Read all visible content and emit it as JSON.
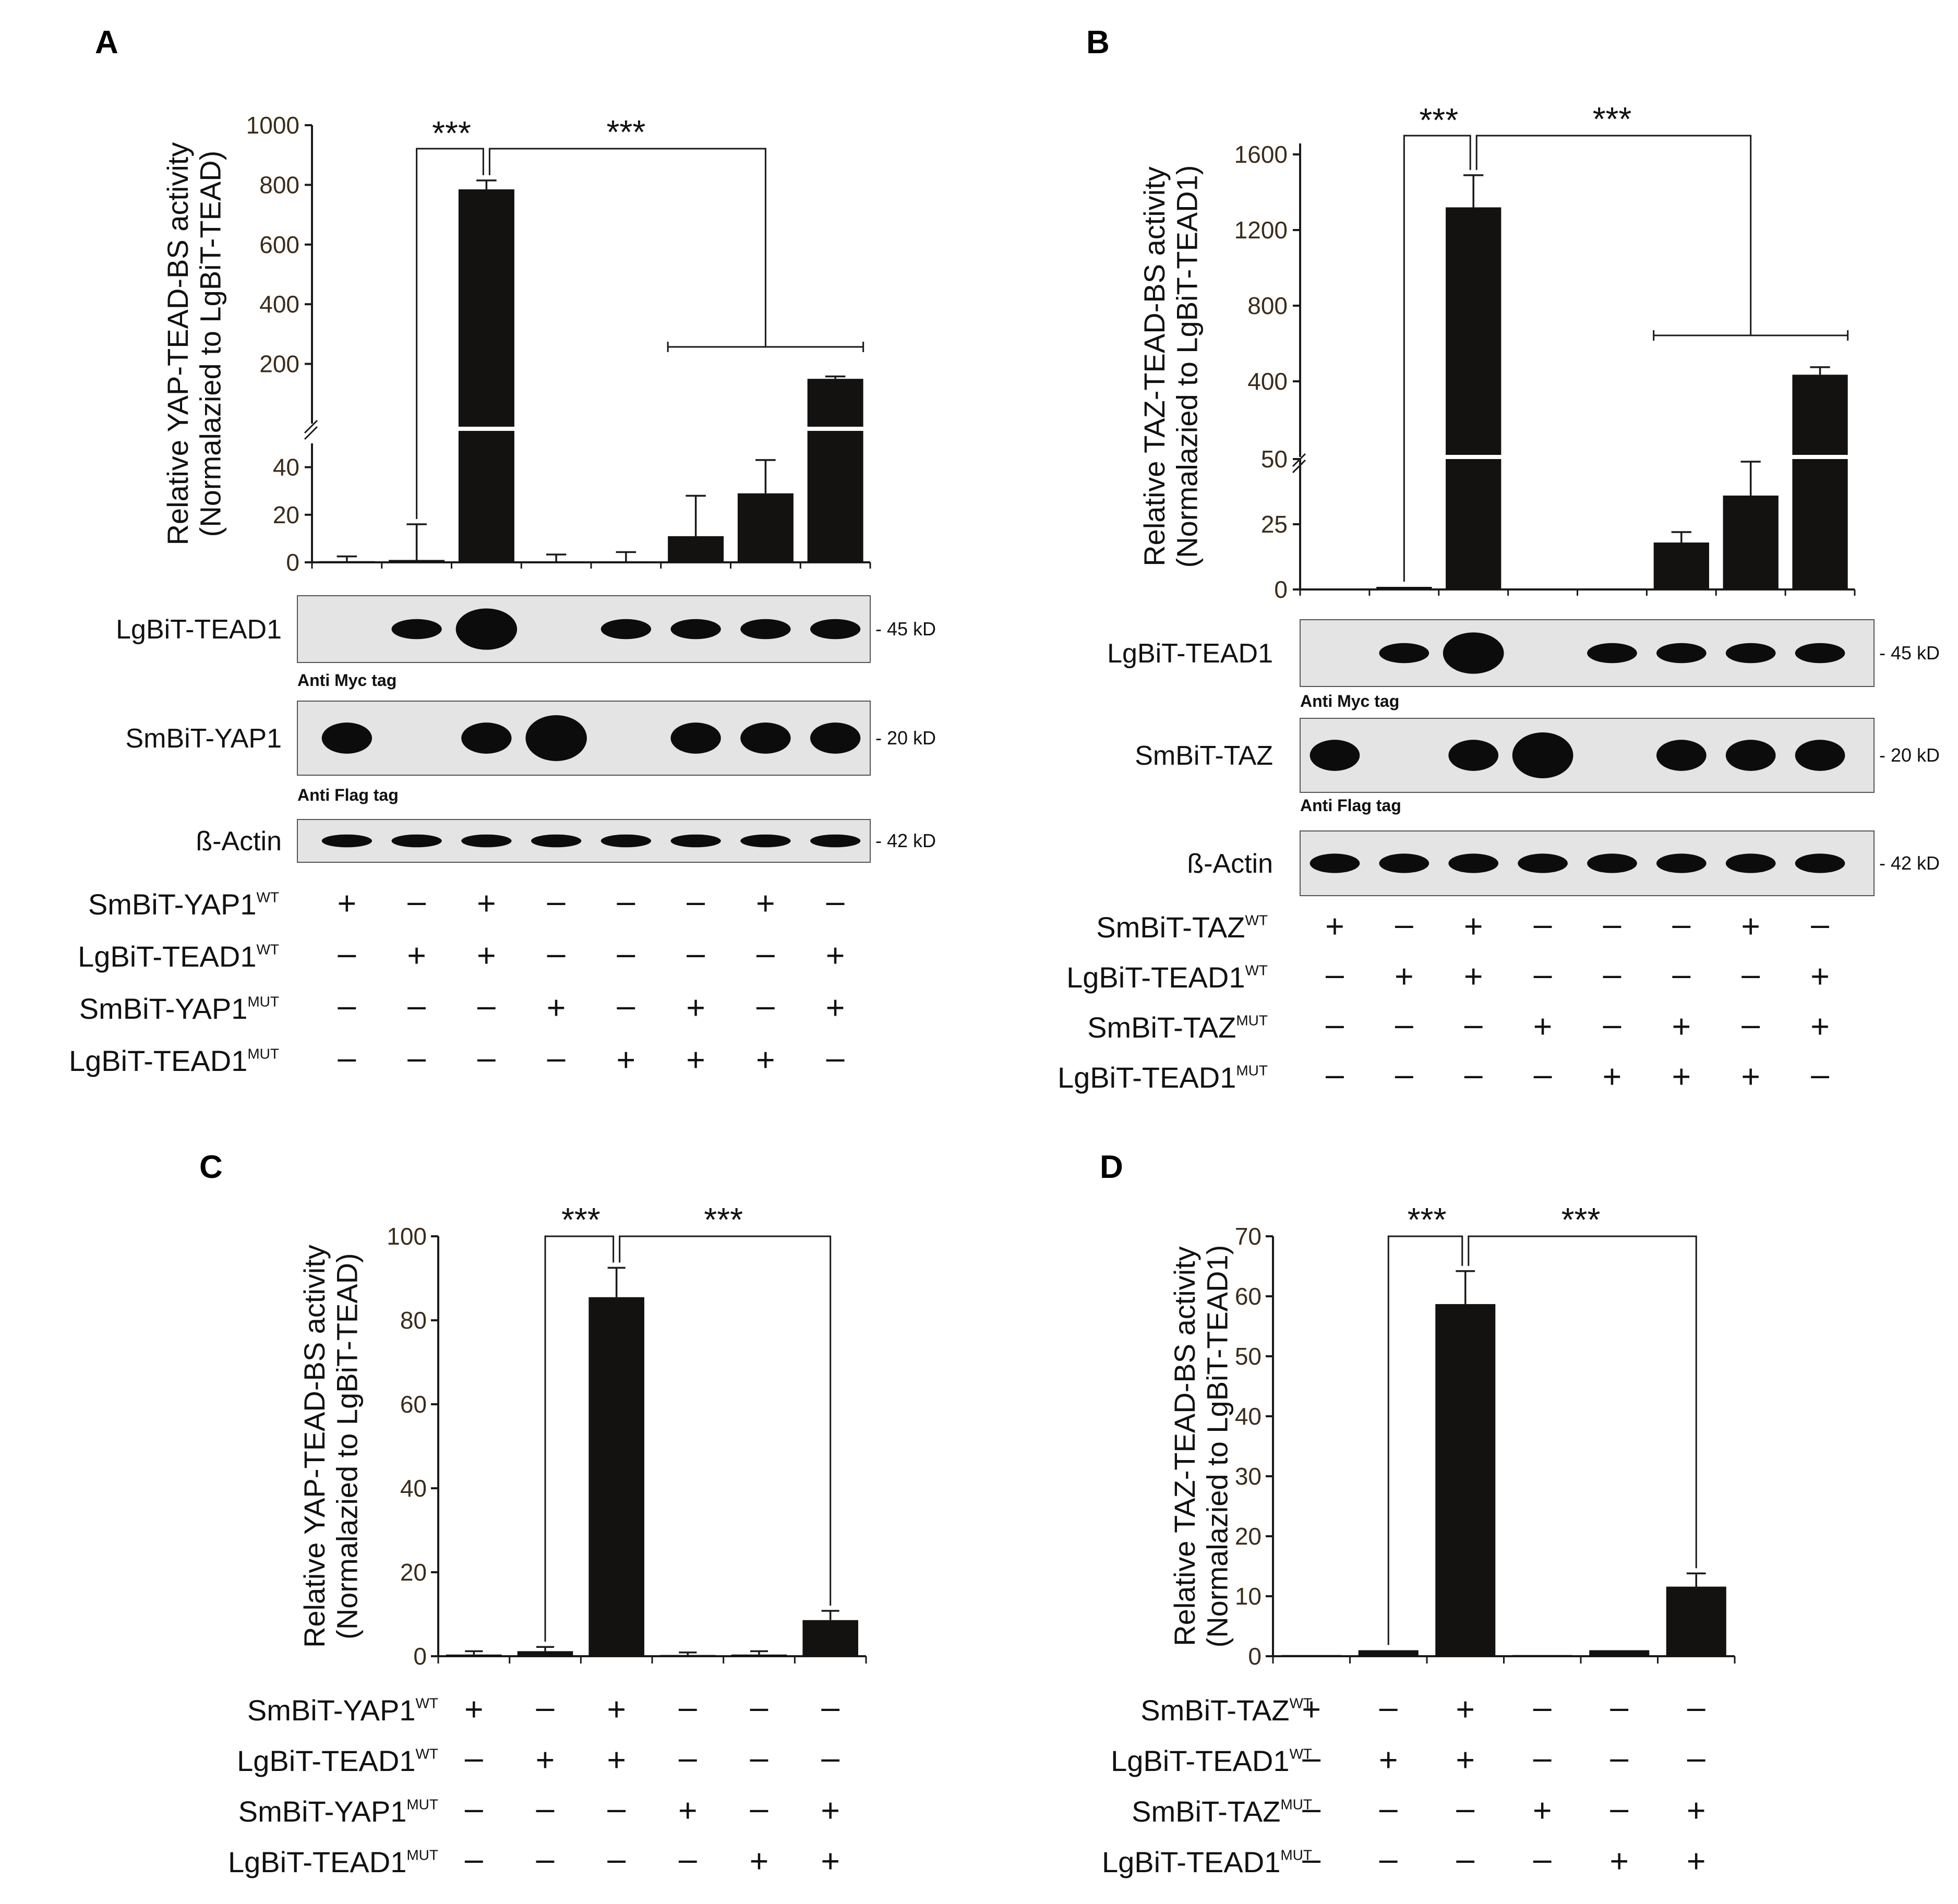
{
  "colors": {
    "bar": "#141210",
    "axis": "#1a1a1a",
    "tick_text": "#3b2b1a",
    "blot_bg": "#e4e4e4",
    "band": "#0c0c0c"
  },
  "chart_data": [
    {
      "panel": "A",
      "type": "bar",
      "ylabel": [
        "Relative YAP-TEAD-BS activity",
        "(Normalazied to LgBiT-TEAD)"
      ],
      "axis_break": true,
      "upper_ticks": [
        "1000",
        "800",
        "600",
        "400",
        "200"
      ],
      "lower_ticks": [
        "40",
        "20",
        "0"
      ],
      "upper_ylim": [
        0,
        1000
      ],
      "lower_ylim": [
        0,
        50
      ],
      "values": [
        0.5,
        1,
        785,
        0.3,
        0.3,
        11,
        29,
        150
      ],
      "errors": [
        2,
        15,
        30,
        3,
        4,
        17,
        14,
        8
      ],
      "significance": [
        {
          "label": "***",
          "from": 1,
          "to": 2
        },
        {
          "label": "***",
          "from": 2,
          "to": [
            5,
            7
          ]
        }
      ],
      "blots": [
        {
          "name": "LgBiT-TEAD1",
          "note": "Anti Myc tag",
          "size": "45 kD",
          "bands": [
            0,
            1,
            2,
            0,
            1,
            1,
            1,
            1
          ]
        },
        {
          "name": "SmBiT-YAP1",
          "note": "Anti Flag tag",
          "size": "20 kD",
          "bands": [
            1,
            0,
            1,
            2,
            0,
            1,
            1,
            1
          ]
        },
        {
          "name": "ß-Actin",
          "note": "",
          "size": "42 kD",
          "bands": [
            1,
            1,
            1,
            1,
            1,
            1,
            1,
            1
          ]
        }
      ],
      "conditions": [
        {
          "label": "SmBiT-YAP1",
          "sup": "WT",
          "signs": [
            "+",
            "–",
            "+",
            "–",
            "–",
            "–",
            "+",
            "–"
          ]
        },
        {
          "label": "LgBiT-TEAD1",
          "sup": "WT",
          "signs": [
            "–",
            "+",
            "+",
            "–",
            "–",
            "–",
            "–",
            "+"
          ]
        },
        {
          "label": "SmBiT-YAP1",
          "sup": "MUT",
          "signs": [
            "–",
            "–",
            "–",
            "+",
            "–",
            "+",
            "–",
            "+"
          ]
        },
        {
          "label": "LgBiT-TEAD1",
          "sup": "MUT",
          "signs": [
            "–",
            "–",
            "–",
            "–",
            "+",
            "+",
            "+",
            "–"
          ]
        }
      ]
    },
    {
      "panel": "B",
      "type": "bar",
      "ylabel": [
        "Relative TAZ-TEAD-BS activity",
        "(Normalazied to LgBiT-TEAD1)"
      ],
      "axis_break": true,
      "upper_ticks": [
        "1600",
        "1200",
        "800",
        "400"
      ],
      "lower_ticks": [
        "50",
        "25",
        "0"
      ],
      "upper_ylim": [
        0,
        1600
      ],
      "lower_ylim": [
        0,
        50
      ],
      "values": [
        0,
        1,
        1320,
        0,
        0.3,
        18,
        36,
        435
      ],
      "errors": [
        0,
        0,
        170,
        0,
        0,
        4,
        13,
        40
      ],
      "significance": [
        {
          "label": "***",
          "from": 1,
          "to": 2
        },
        {
          "label": "***",
          "from": 2,
          "to": [
            5,
            7
          ]
        }
      ],
      "blots": [
        {
          "name": "LgBiT-TEAD1",
          "note": "Anti Myc tag",
          "size": "45 kD",
          "bands": [
            0,
            1,
            2,
            0,
            1,
            1,
            1,
            1
          ]
        },
        {
          "name": "SmBiT-TAZ",
          "note": "Anti Flag tag",
          "size": "20 kD",
          "bands": [
            1,
            0,
            1,
            2,
            0,
            1,
            1,
            1
          ]
        },
        {
          "name": "ß-Actin",
          "note": "",
          "size": "42 kD",
          "bands": [
            1,
            1,
            1,
            1,
            1,
            1,
            1,
            1
          ]
        }
      ],
      "conditions": [
        {
          "label": "SmBiT-TAZ",
          "sup": "WT",
          "signs": [
            "+",
            "–",
            "+",
            "–",
            "–",
            "–",
            "+",
            "–"
          ]
        },
        {
          "label": "LgBiT-TEAD1",
          "sup": "WT",
          "signs": [
            "–",
            "+",
            "+",
            "–",
            "–",
            "–",
            "–",
            "+"
          ]
        },
        {
          "label": "SmBiT-TAZ",
          "sup": "MUT",
          "signs": [
            "–",
            "–",
            "–",
            "+",
            "–",
            "+",
            "–",
            "+"
          ]
        },
        {
          "label": "LgBiT-TEAD1",
          "sup": "MUT",
          "signs": [
            "–",
            "–",
            "–",
            "–",
            "+",
            "+",
            "+",
            "–"
          ]
        }
      ]
    },
    {
      "panel": "C",
      "type": "bar",
      "ylabel": [
        "Relative YAP-TEAD-BS activity",
        "(Normalazied to LgBiT-TEAD)"
      ],
      "ylim": [
        0,
        100
      ],
      "ticks": [
        "100",
        "80",
        "60",
        "40",
        "20",
        "0"
      ],
      "values": [
        0.4,
        1.2,
        85.5,
        0.3,
        0.4,
        8.6
      ],
      "errors": [
        0.8,
        1,
        7,
        0.6,
        0.8,
        2.2
      ],
      "significance": [
        {
          "label": "***",
          "from": 1,
          "to": 2
        },
        {
          "label": "***",
          "from": 2,
          "to": 5
        }
      ],
      "conditions": [
        {
          "label": "SmBiT-YAP1",
          "sup": "WT",
          "signs": [
            "+",
            "–",
            "+",
            "–",
            "–",
            "–"
          ]
        },
        {
          "label": "LgBiT-TEAD1",
          "sup": "WT",
          "signs": [
            "–",
            "+",
            "+",
            "–",
            "–",
            "–"
          ]
        },
        {
          "label": "SmBiT-YAP1",
          "sup": "MUT",
          "signs": [
            "–",
            "–",
            "–",
            "+",
            "–",
            "+"
          ]
        },
        {
          "label": "LgBiT-TEAD1",
          "sup": "MUT",
          "signs": [
            "–",
            "–",
            "–",
            "–",
            "+",
            "+"
          ]
        }
      ]
    },
    {
      "panel": "D",
      "type": "bar",
      "ylabel": [
        "Relative TAZ-TEAD-BS activity",
        "(Normalazied to LgBiT-TEAD1)"
      ],
      "ylim": [
        0,
        70
      ],
      "ticks": [
        "70",
        "60",
        "50",
        "40",
        "30",
        "20",
        "10",
        "0"
      ],
      "values": [
        0.2,
        1,
        58.7,
        0.2,
        1,
        11.6
      ],
      "errors": [
        0,
        0,
        5.5,
        0,
        0,
        2.2
      ],
      "significance": [
        {
          "label": "***",
          "from": 1,
          "to": 2
        },
        {
          "label": "***",
          "from": 2,
          "to": 5
        }
      ],
      "conditions": [
        {
          "label": "SmBiT-TAZ",
          "sup": "WT",
          "signs": [
            "+",
            "–",
            "+",
            "–",
            "–",
            "–"
          ]
        },
        {
          "label": "LgBiT-TEAD1",
          "sup": "WT",
          "signs": [
            "–",
            "+",
            "+",
            "–",
            "–",
            "–"
          ]
        },
        {
          "label": "SmBiT-TAZ",
          "sup": "MUT",
          "signs": [
            "–",
            "–",
            "–",
            "+",
            "–",
            "+"
          ]
        },
        {
          "label": "LgBiT-TEAD1",
          "sup": "MUT",
          "signs": [
            "–",
            "–",
            "–",
            "–",
            "+",
            "+"
          ]
        }
      ]
    }
  ]
}
